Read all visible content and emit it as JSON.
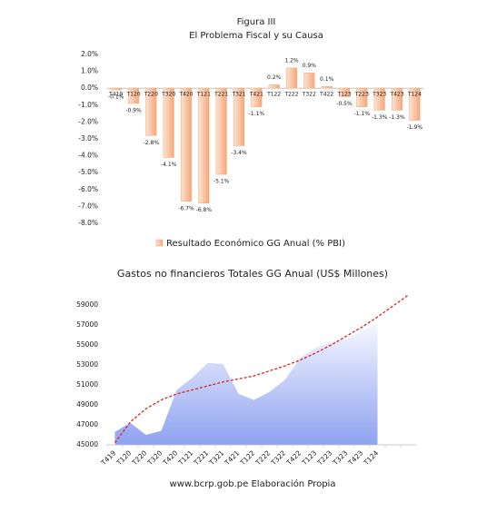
{
  "header": {
    "title": "Figura III",
    "subtitle": "El Problema Fiscal y su Causa"
  },
  "footer": "www.bcrp.gob.pe Elaboración Propia",
  "chart_data": [
    {
      "type": "bar",
      "categories": [
        "T419",
        "T120",
        "T220",
        "T320",
        "T420",
        "T121",
        "T221",
        "T321",
        "T421",
        "T122",
        "T222",
        "T322",
        "T422",
        "T123",
        "T223",
        "T323",
        "T423",
        "T124"
      ],
      "series": [
        {
          "name": "Resultado Económico GG Anual (% PBI)",
          "color": "#f4b183",
          "values": [
            -0.1,
            -0.9,
            -2.8,
            -4.1,
            -6.7,
            -6.8,
            -5.1,
            -3.4,
            -1.1,
            0.2,
            1.2,
            0.9,
            0.1,
            -0.5,
            -1.1,
            -1.3,
            -1.3,
            -1.9
          ],
          "value_labels": [
            "-0.1%",
            "-0.9%",
            "-2.8%",
            "-4.1%",
            "-6.7%",
            "-6.8%",
            "-5.1%",
            "-3.4%",
            "-1.1%",
            "0.2%",
            "1.2%",
            "0.9%",
            "0.1%",
            "-0.5%",
            "-1.1%",
            "-1.3%",
            "-1.3%",
            "-1.9%"
          ]
        }
      ],
      "ylim": [
        -8,
        2
      ],
      "yticks": [
        {
          "value": 2,
          "label": "2.0%"
        },
        {
          "value": 1,
          "label": "1.0%"
        },
        {
          "value": 0,
          "label": "0.0%"
        },
        {
          "value": -1,
          "label": "-1.0%"
        },
        {
          "value": -2,
          "label": "-2.0%"
        },
        {
          "value": -3,
          "label": "-3.0%"
        },
        {
          "value": -4,
          "label": "-4.0%"
        },
        {
          "value": -5,
          "label": "-5.0%"
        },
        {
          "value": -6,
          "label": "-6.0%"
        },
        {
          "value": -7,
          "label": "-7.0%"
        },
        {
          "value": -8,
          "label": "-8.0%"
        }
      ],
      "legend": "bottom"
    },
    {
      "type": "area",
      "title": "Gastos no financieros Totales GG Anual (US$ Millones)",
      "categories": [
        "T419",
        "T120",
        "T220",
        "T320",
        "T420",
        "T121",
        "T221",
        "T321",
        "T421",
        "T122",
        "T222",
        "T322",
        "T422",
        "T123",
        "T223",
        "T323",
        "T423",
        "T124",
        null,
        null
      ],
      "color": "#8ea2f0",
      "values": [
        46300,
        47200,
        46000,
        46400,
        50500,
        51700,
        53200,
        53100,
        50100,
        49500,
        50300,
        51500,
        53700,
        54700,
        55300,
        55600,
        56400,
        57200,
        null,
        null
      ],
      "trend": {
        "color": "#e02020",
        "values": [
          45200,
          47300,
          48600,
          49500,
          50100,
          50500,
          50900,
          51300,
          51600,
          51900,
          52400,
          52900,
          53500,
          54200,
          55000,
          55900,
          56800,
          57800,
          58900,
          60000
        ]
      },
      "ylim": [
        45000,
        60000
      ],
      "yticks": [
        45000,
        47000,
        49000,
        51000,
        53000,
        55000,
        57000,
        59000
      ]
    }
  ]
}
